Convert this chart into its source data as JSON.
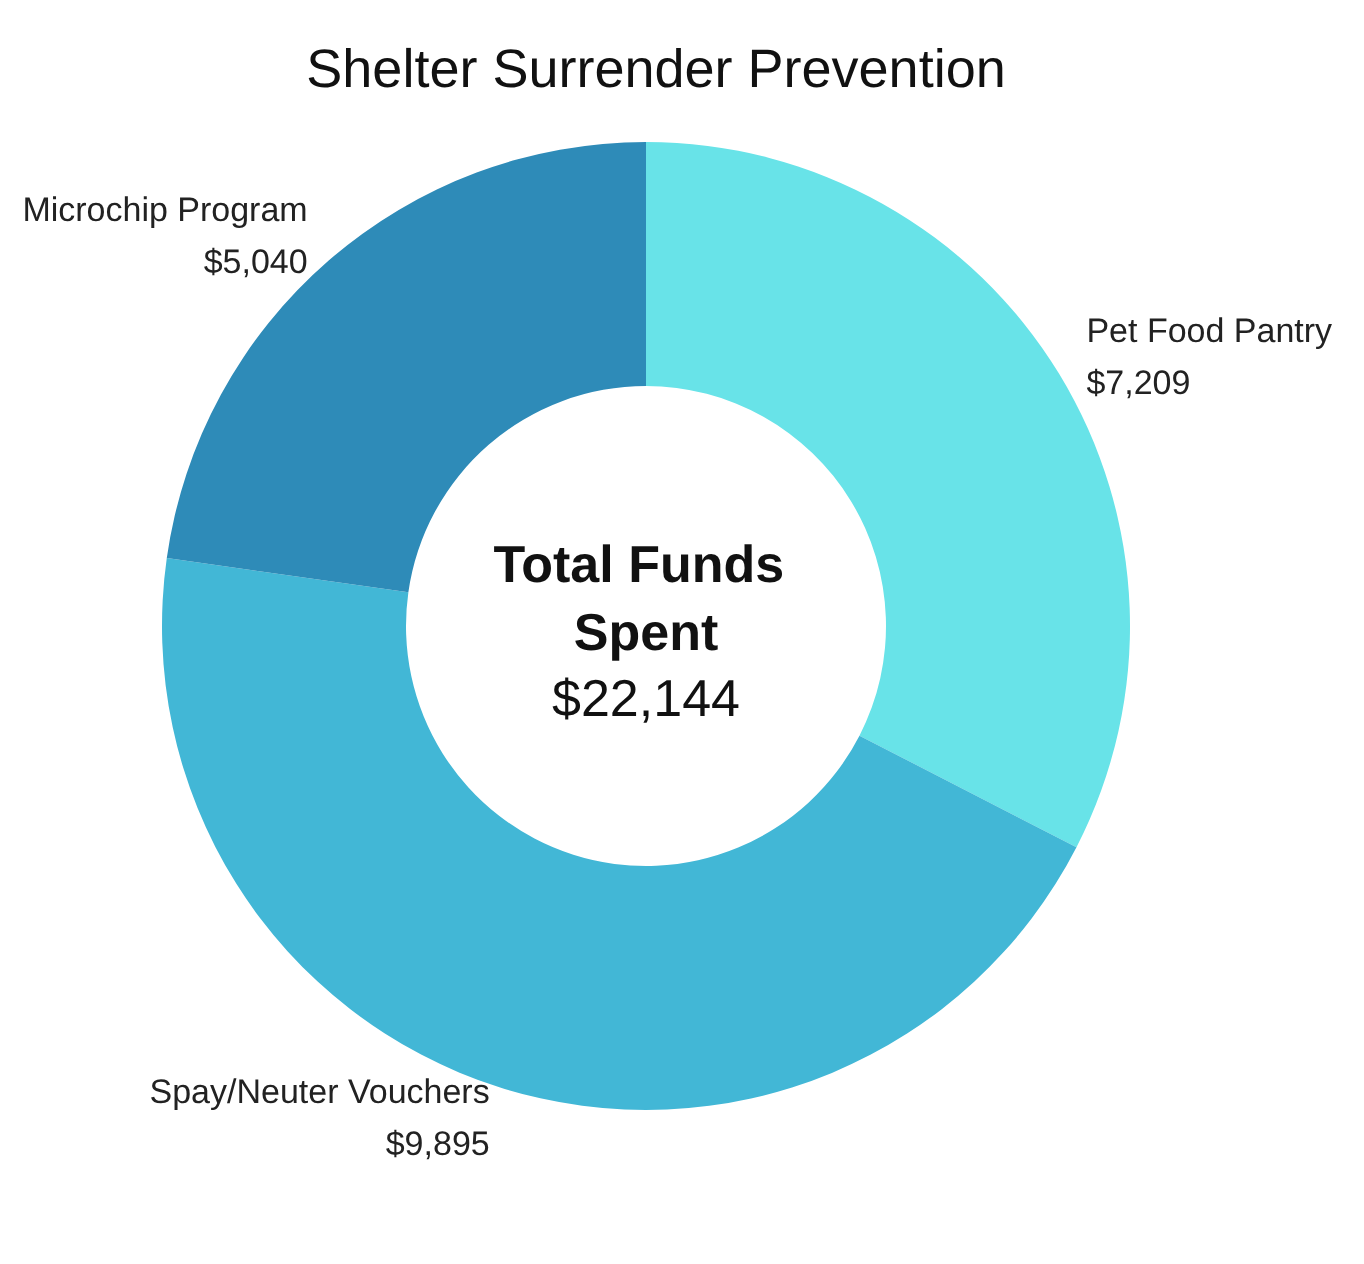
{
  "chart_data": {
    "type": "donut",
    "title": "Shelter Surrender Prevention",
    "categories": [
      "Pet Food Pantry",
      "Spay/Neuter Vouchers",
      "Microchip Program"
    ],
    "values": [
      7209,
      9895,
      5040
    ],
    "value_labels": [
      "$7,209",
      "$9,895",
      "$5,040"
    ],
    "colors": [
      "#68e3e8",
      "#42b7d6",
      "#2e8bb8"
    ],
    "annotations": [
      "Total Funds Spent",
      "$22,144"
    ],
    "legend": false
  }
}
